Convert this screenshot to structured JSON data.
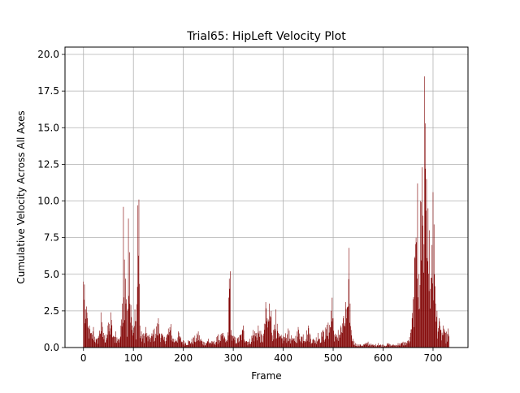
{
  "chart_data": {
    "type": "bar",
    "title": "Trial65: HipLeft Velocity Plot",
    "xlabel": "Frame",
    "ylabel": "Cumulative Velocity Across All Axes",
    "xlim": [
      -37,
      770
    ],
    "ylim": [
      0,
      20.5
    ],
    "xticks": [
      0,
      100,
      200,
      300,
      400,
      500,
      600,
      700
    ],
    "yticks": [
      0.0,
      2.5,
      5.0,
      7.5,
      10.0,
      12.5,
      15.0,
      17.5,
      20.0
    ],
    "ytick_labels": [
      "0.0",
      "2.5",
      "5.0",
      "7.5",
      "10.0",
      "12.5",
      "15.0",
      "17.5",
      "20.0"
    ],
    "grid": true,
    "bar_color": "#800000",
    "n_frames": 733,
    "keypoints": [
      [
        0,
        4.5
      ],
      [
        2,
        4.3
      ],
      [
        4,
        2.6
      ],
      [
        6,
        2.8
      ],
      [
        8,
        2.0
      ],
      [
        12,
        1.5
      ],
      [
        16,
        1.0
      ],
      [
        20,
        1.4
      ],
      [
        25,
        0.6
      ],
      [
        30,
        0.8
      ],
      [
        35,
        2.4
      ],
      [
        40,
        1.0
      ],
      [
        45,
        0.9
      ],
      [
        50,
        1.7
      ],
      [
        55,
        2.4
      ],
      [
        60,
        0.8
      ],
      [
        65,
        1.1
      ],
      [
        70,
        0.6
      ],
      [
        75,
        1.5
      ],
      [
        78,
        3.0
      ],
      [
        80,
        9.6
      ],
      [
        82,
        6.0
      ],
      [
        84,
        4.7
      ],
      [
        86,
        3.3
      ],
      [
        88,
        2.5
      ],
      [
        90,
        8.8
      ],
      [
        92,
        6.5
      ],
      [
        95,
        2.9
      ],
      [
        98,
        1.5
      ],
      [
        100,
        1.0
      ],
      [
        103,
        2.6
      ],
      [
        106,
        1.8
      ],
      [
        109,
        9.7
      ],
      [
        111,
        10.1
      ],
      [
        113,
        1.5
      ],
      [
        118,
        0.9
      ],
      [
        125,
        1.4
      ],
      [
        130,
        0.8
      ],
      [
        140,
        1.2
      ],
      [
        150,
        2.0
      ],
      [
        160,
        0.7
      ],
      [
        170,
        1.3
      ],
      [
        175,
        1.6
      ],
      [
        180,
        0.6
      ],
      [
        190,
        1.1
      ],
      [
        200,
        0.5
      ],
      [
        210,
        0.5
      ],
      [
        220,
        0.7
      ],
      [
        230,
        1.1
      ],
      [
        240,
        0.4
      ],
      [
        250,
        0.6
      ],
      [
        260,
        0.4
      ],
      [
        270,
        0.9
      ],
      [
        280,
        1.0
      ],
      [
        288,
        0.5
      ],
      [
        292,
        4.7
      ],
      [
        294,
        5.2
      ],
      [
        296,
        1.2
      ],
      [
        300,
        0.8
      ],
      [
        310,
        0.7
      ],
      [
        320,
        1.5
      ],
      [
        330,
        0.4
      ],
      [
        340,
        1.2
      ],
      [
        350,
        1.5
      ],
      [
        360,
        0.8
      ],
      [
        365,
        3.1
      ],
      [
        368,
        2.0
      ],
      [
        372,
        3.0
      ],
      [
        376,
        2.5
      ],
      [
        380,
        1.2
      ],
      [
        385,
        2.6
      ],
      [
        390,
        1.0
      ],
      [
        400,
        0.8
      ],
      [
        410,
        1.3
      ],
      [
        420,
        0.6
      ],
      [
        430,
        1.4
      ],
      [
        440,
        0.9
      ],
      [
        450,
        1.5
      ],
      [
        460,
        0.6
      ],
      [
        470,
        1.0
      ],
      [
        480,
        1.2
      ],
      [
        490,
        1.7
      ],
      [
        496,
        2.5
      ],
      [
        498,
        3.4
      ],
      [
        500,
        2.0
      ],
      [
        505,
        0.8
      ],
      [
        510,
        1.2
      ],
      [
        515,
        1.5
      ],
      [
        520,
        2.0
      ],
      [
        525,
        3.1
      ],
      [
        530,
        2.8
      ],
      [
        532,
        6.8
      ],
      [
        534,
        3.0
      ],
      [
        536,
        1.2
      ],
      [
        540,
        0.6
      ],
      [
        545,
        0.3
      ],
      [
        555,
        0.2
      ],
      [
        570,
        0.4
      ],
      [
        580,
        0.2
      ],
      [
        590,
        0.3
      ],
      [
        600,
        0.2
      ],
      [
        610,
        0.3
      ],
      [
        620,
        0.2
      ],
      [
        630,
        0.3
      ],
      [
        640,
        0.4
      ],
      [
        650,
        0.5
      ],
      [
        655,
        1.0
      ],
      [
        658,
        2.0
      ],
      [
        660,
        3.3
      ],
      [
        663,
        6.2
      ],
      [
        666,
        7.5
      ],
      [
        669,
        11.2
      ],
      [
        672,
        5.0
      ],
      [
        675,
        10.0
      ],
      [
        678,
        12.3
      ],
      [
        680,
        9.0
      ],
      [
        683,
        18.5
      ],
      [
        685,
        15.3
      ],
      [
        687,
        11.5
      ],
      [
        690,
        9.5
      ],
      [
        693,
        8.0
      ],
      [
        695,
        4.0
      ],
      [
        698,
        7.0
      ],
      [
        700,
        10.6
      ],
      [
        702,
        8.4
      ],
      [
        705,
        3.0
      ],
      [
        708,
        2.5
      ],
      [
        712,
        2.0
      ],
      [
        716,
        1.2
      ],
      [
        720,
        1.5
      ],
      [
        725,
        1.0
      ],
      [
        730,
        1.3
      ],
      [
        733,
        0.6
      ]
    ]
  }
}
